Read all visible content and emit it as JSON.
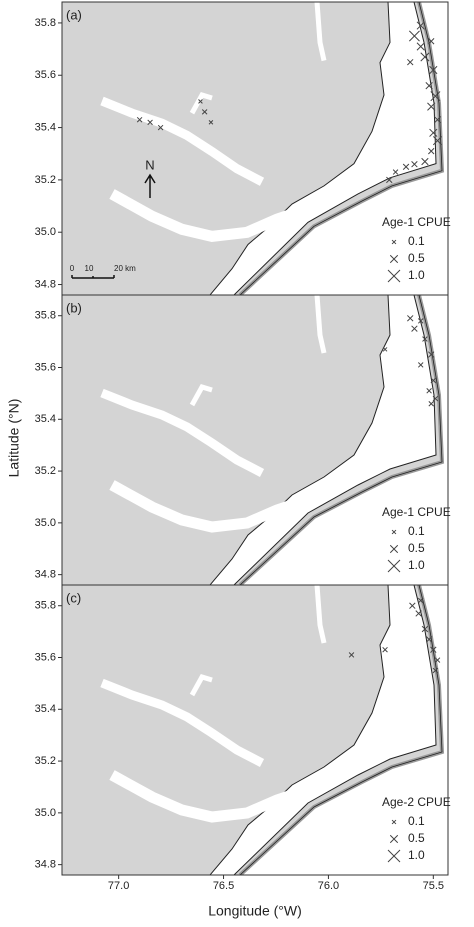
{
  "chart_data": [
    {
      "type": "scatter",
      "panel_label": "(a)",
      "ylabel": "Latitude (°N)",
      "xlim": [
        77.27,
        75.43
      ],
      "ylim": [
        34.76,
        35.88
      ],
      "yticks": [
        {
          "value": 34.8,
          "label": "34.8"
        },
        {
          "value": 35,
          "label": "35.0"
        },
        {
          "value": 35.2,
          "label": "35.2"
        },
        {
          "value": 35.4,
          "label": "35.4"
        },
        {
          "value": 35.6,
          "label": "35.6"
        },
        {
          "value": 35.8,
          "label": "35.8"
        }
      ],
      "x": [
        75.59,
        75.56,
        75.51,
        75.54,
        75.5,
        75.52,
        75.49,
        75.51,
        75.48,
        75.5,
        75.48,
        75.51,
        75.54,
        75.59,
        75.63,
        75.68,
        75.71,
        75.56,
        75.61,
        76.9,
        76.85,
        76.8,
        76.61,
        76.59,
        76.56
      ],
      "y": [
        35.75,
        35.71,
        35.73,
        35.67,
        35.62,
        35.56,
        35.52,
        35.48,
        35.43,
        35.38,
        35.35,
        35.31,
        35.27,
        35.26,
        35.25,
        35.23,
        35.2,
        35.79,
        35.65,
        35.43,
        35.42,
        35.4,
        35.5,
        35.46,
        35.42
      ],
      "sizes": [
        0.8,
        0.5,
        0.3,
        0.6,
        0.5,
        0.4,
        0.7,
        0.5,
        0.4,
        0.5,
        0.6,
        0.3,
        0.4,
        0.3,
        0.3,
        0.2,
        0.3,
        0.5,
        0.3,
        0.2,
        0.2,
        0.2,
        0.1,
        0.2,
        0.1
      ],
      "color": "#555555",
      "legend": {
        "title": "Age-1 CPUE",
        "sizes": [
          0.1,
          0.5,
          {
            "value": 1,
            "label": "1.0"
          }
        ]
      },
      "north_label": "N",
      "scale_bar": [
        "0",
        "10",
        "20 km"
      ]
    },
    {
      "type": "scatter",
      "panel_label": "(b)",
      "xlim": [
        77.27,
        75.43
      ],
      "ylim": [
        34.76,
        35.88
      ],
      "yticks": [
        {
          "value": 34.8,
          "label": "34.8"
        },
        {
          "value": 35,
          "label": "35.0"
        },
        {
          "value": 35.2,
          "label": "35.2"
        },
        {
          "value": 35.4,
          "label": "35.4"
        },
        {
          "value": 35.6,
          "label": "35.6"
        },
        {
          "value": 35.8,
          "label": "35.8"
        }
      ],
      "x": [
        75.61,
        75.56,
        75.59,
        75.54,
        75.51,
        75.56,
        75.5,
        75.52,
        75.49,
        75.51,
        75.73
      ],
      "y": [
        35.79,
        35.78,
        35.75,
        35.71,
        35.65,
        35.61,
        35.55,
        35.51,
        35.48,
        35.46,
        35.67
      ],
      "sizes": [
        0.3,
        0.2,
        0.3,
        0.2,
        0.3,
        0.2,
        0.2,
        0.2,
        0.2,
        0.2,
        0.1
      ],
      "color": "#555555",
      "legend": {
        "title": "Age-1 CPUE",
        "sizes": [
          0.1,
          0.5,
          {
            "value": 1,
            "label": "1.0"
          }
        ]
      }
    },
    {
      "type": "scatter",
      "panel_label": "(c)",
      "xlabel": "Longitude (°W)",
      "xlim": [
        77.27,
        75.43
      ],
      "ylim": [
        34.76,
        35.88
      ],
      "xticks": [
        {
          "value": 77,
          "label": "77.0"
        },
        {
          "value": 76.5,
          "label": "76.5"
        },
        {
          "value": 76,
          "label": "76.0"
        },
        {
          "value": 75.5,
          "label": "75.5"
        }
      ],
      "yticks": [
        {
          "value": 34.8,
          "label": "34.8"
        },
        {
          "value": 35,
          "label": "35.0"
        },
        {
          "value": 35.2,
          "label": "35.2"
        },
        {
          "value": 35.4,
          "label": "35.4"
        },
        {
          "value": 35.6,
          "label": "35.6"
        },
        {
          "value": 35.8,
          "label": "35.8"
        }
      ],
      "x": [
        75.6,
        75.57,
        75.54,
        75.52,
        75.5,
        75.48,
        75.49,
        75.73,
        75.89,
        75.56
      ],
      "y": [
        35.8,
        35.77,
        35.71,
        35.67,
        35.63,
        35.59,
        35.55,
        35.63,
        35.61,
        35.82
      ],
      "sizes": [
        0.3,
        0.3,
        0.3,
        0.3,
        0.3,
        0.2,
        0.2,
        0.2,
        0.2,
        0.2
      ],
      "color": "#555555",
      "legend": {
        "title": "Age-2 CPUE",
        "sizes": [
          0.1,
          0.5,
          {
            "value": 1,
            "label": "1.0"
          }
        ]
      }
    }
  ]
}
